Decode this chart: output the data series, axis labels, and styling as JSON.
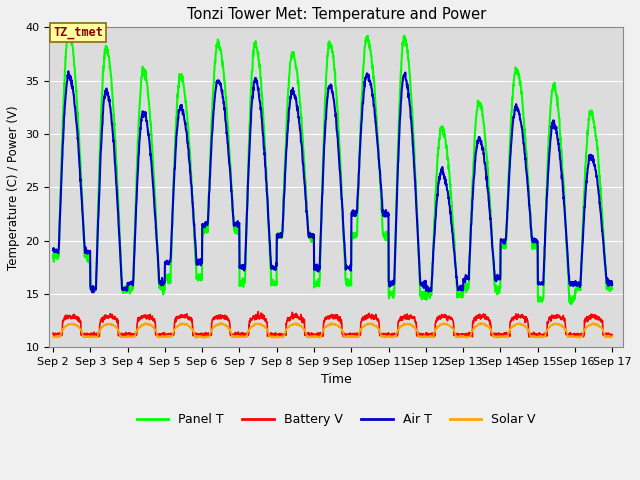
{
  "title": "Tonzi Tower Met: Temperature and Power",
  "xlabel": "Time",
  "ylabel": "Temperature (C) / Power (V)",
  "ylim": [
    10,
    40
  ],
  "xtick_labels": [
    "Sep 2",
    "Sep 3",
    "Sep 4",
    "Sep 5",
    "Sep 6",
    "Sep 7",
    "Sep 8",
    "Sep 9",
    "Sep 10",
    "Sep 11",
    "Sep 12",
    "Sep 13",
    "Sep 14",
    "Sep 15",
    "Sep 16",
    "Sep 17"
  ],
  "xtick_positions": [
    1,
    2,
    3,
    4,
    5,
    6,
    7,
    8,
    9,
    10,
    11,
    12,
    13,
    14,
    15,
    16
  ],
  "annotation_text": "TZ_tmet",
  "panel_T_color": "#00FF00",
  "air_T_color": "#0000CC",
  "battery_V_color": "#FF0000",
  "solar_V_color": "#FFA500",
  "bg_color": "#DCDCDC",
  "fig_color": "#F0F0F0",
  "panel_T_lw": 1.5,
  "air_T_lw": 1.5,
  "battery_V_lw": 1.2,
  "solar_V_lw": 1.2,
  "legend_labels": [
    "Panel T",
    "Battery V",
    "Air T",
    "Solar V"
  ],
  "legend_colors": [
    "#00FF00",
    "#FF0000",
    "#0000CC",
    "#FFA500"
  ],
  "peak_panels": [
    39.5,
    38.0,
    36.0,
    35.5,
    38.5,
    38.5,
    37.5,
    38.5,
    39.0,
    39.0,
    30.5,
    33.0,
    36.0,
    34.5,
    32.0
  ],
  "peak_airT": [
    35.5,
    34.0,
    32.0,
    32.5,
    35.0,
    35.0,
    34.0,
    34.5,
    35.5,
    35.5,
    26.5,
    29.5,
    32.5,
    31.0,
    28.0
  ],
  "min_panels": [
    18.5,
    15.5,
    15.5,
    16.5,
    21.0,
    16.0,
    20.5,
    16.0,
    20.5,
    15.0,
    15.0,
    15.5,
    19.5,
    14.5,
    15.5
  ],
  "min_airT": [
    19.0,
    15.5,
    16.0,
    18.0,
    21.5,
    17.5,
    20.5,
    17.5,
    22.5,
    16.0,
    15.5,
    16.5,
    20.0,
    16.0,
    16.0
  ]
}
